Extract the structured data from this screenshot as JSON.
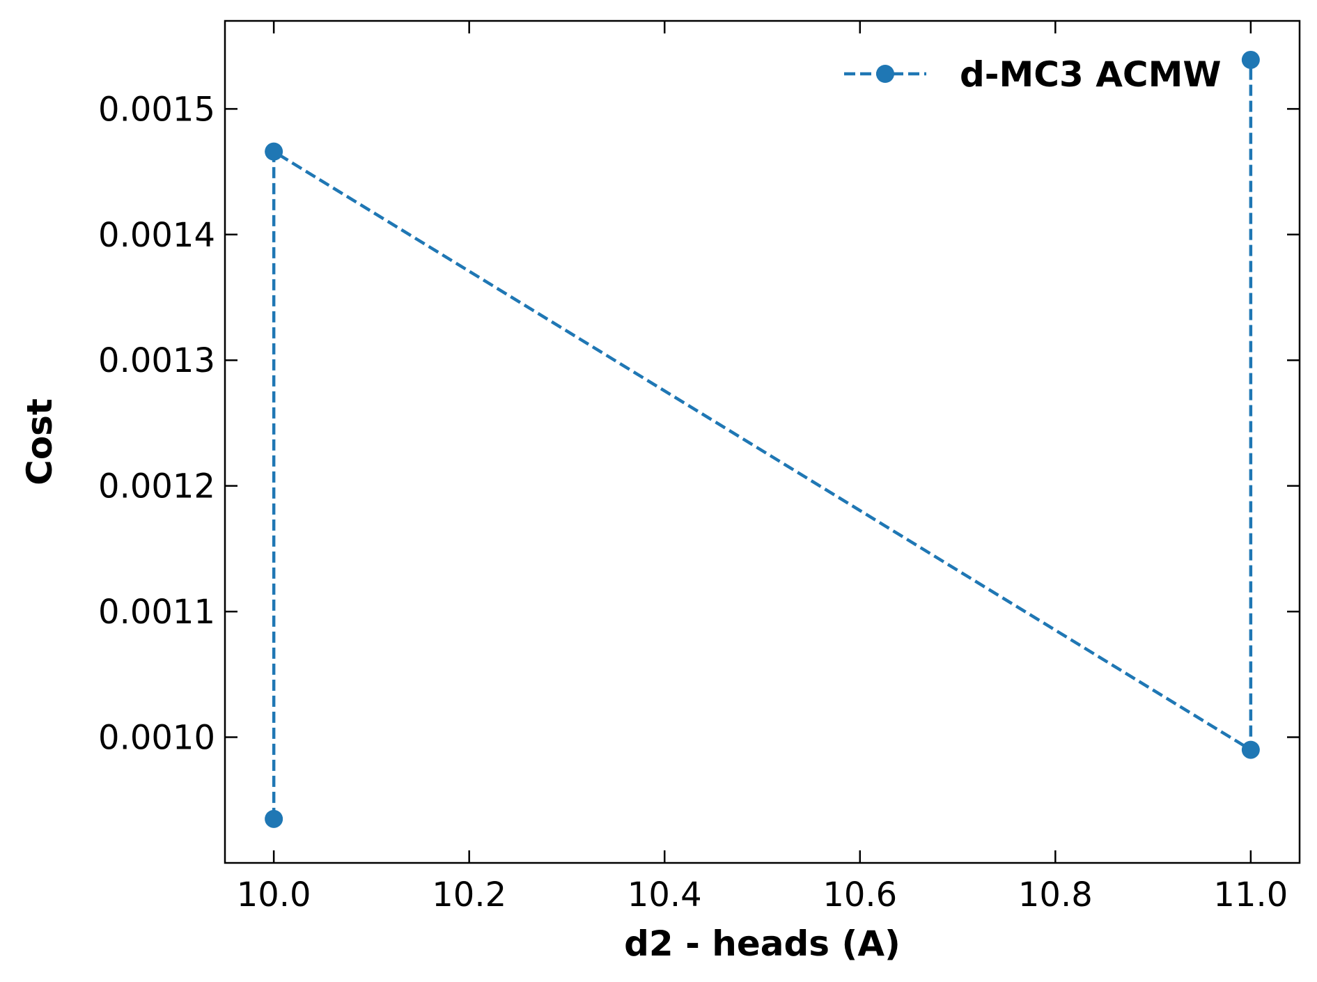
{
  "chart_data": {
    "type": "line",
    "xlabel": "d2 - heads (A)",
    "ylabel": "Cost",
    "xlim": [
      9.95,
      11.05
    ],
    "ylim": [
      0.0009,
      0.00157
    ],
    "xticks": [
      10.0,
      10.2,
      10.4,
      10.6,
      10.8,
      11.0
    ],
    "xtick_labels": [
      "10.0",
      "10.2",
      "10.4",
      "10.6",
      "10.8",
      "11.0"
    ],
    "yticks": [
      0.001,
      0.0011,
      0.0012,
      0.0013,
      0.0014,
      0.0015
    ],
    "ytick_labels": [
      "0.0010",
      "0.0011",
      "0.0012",
      "0.0013",
      "0.0014",
      "0.0015"
    ],
    "grid": false,
    "legend_position": "upper-right",
    "series": [
      {
        "name": "d-MC3 ACMW",
        "color": "#1f77b4",
        "linestyle": "dashed",
        "marker": "circle",
        "x": [
          10.0,
          10.0,
          11.0,
          11.0
        ],
        "y": [
          0.000935,
          0.001466,
          0.00099,
          0.001539
        ]
      }
    ]
  }
}
